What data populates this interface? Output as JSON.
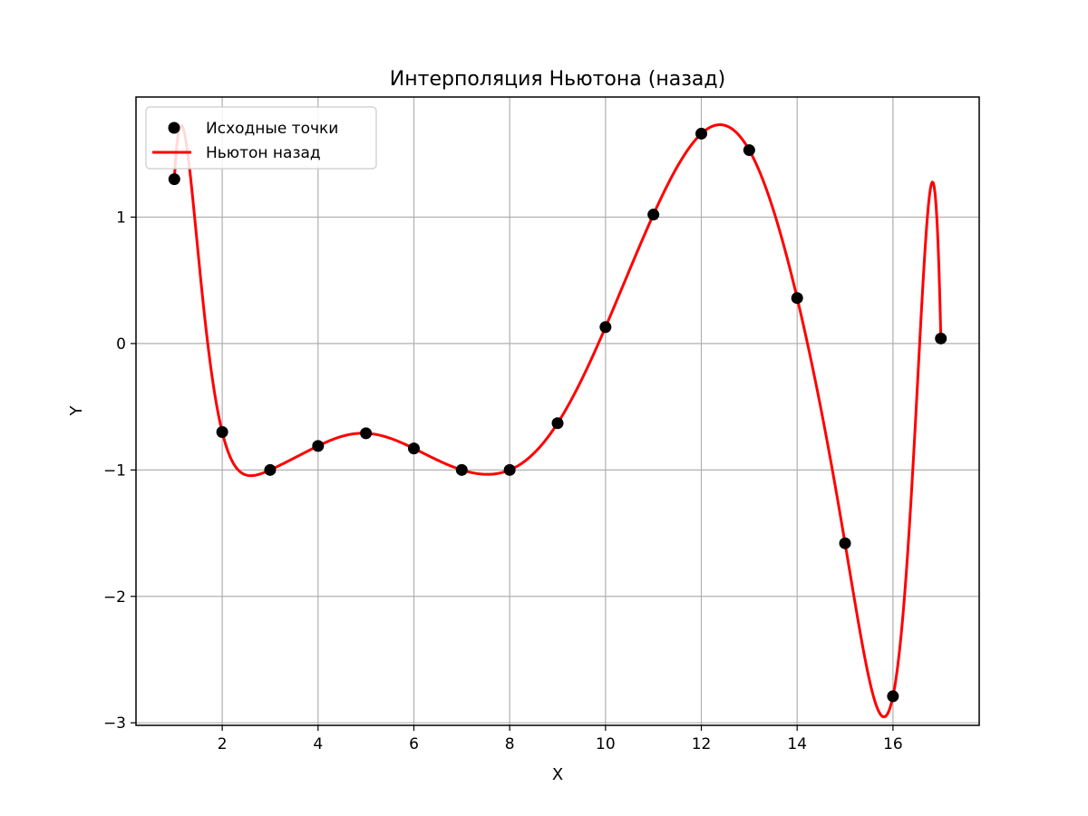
{
  "chart_data": {
    "type": "line",
    "title": "Интерполяция Ньютона (назад)",
    "xlabel": "X",
    "ylabel": "Y",
    "xlim": [
      0.2,
      17.8
    ],
    "ylim": [
      -3.02,
      1.95
    ],
    "x_ticks": [
      2,
      4,
      6,
      8,
      10,
      12,
      14,
      16
    ],
    "x_tick_labels": [
      "2",
      "4",
      "6",
      "8",
      "10",
      "12",
      "14",
      "16"
    ],
    "y_ticks": [
      -3,
      -2,
      -1,
      0,
      1
    ],
    "y_tick_labels": [
      "−3",
      "−2",
      "−1",
      "0",
      "1"
    ],
    "grid": true,
    "legend_position": "top-left",
    "series": [
      {
        "name": "Исходные точки",
        "kind": "scatter",
        "color": "#000000",
        "x": [
          1,
          2,
          3,
          4,
          5,
          6,
          7,
          8,
          9,
          10,
          11,
          12,
          13,
          14,
          15,
          16,
          17
        ],
        "y": [
          1.3,
          -0.7,
          -1.0,
          -0.81,
          -0.71,
          -0.83,
          -1.0,
          -1.0,
          -0.63,
          0.13,
          1.02,
          1.66,
          1.53,
          0.36,
          -1.58,
          -2.79,
          0.04
        ]
      },
      {
        "name": "Ньютон назад",
        "kind": "line",
        "color": "#ff0000",
        "note": "interpolating polynomial through the source points"
      }
    ]
  }
}
